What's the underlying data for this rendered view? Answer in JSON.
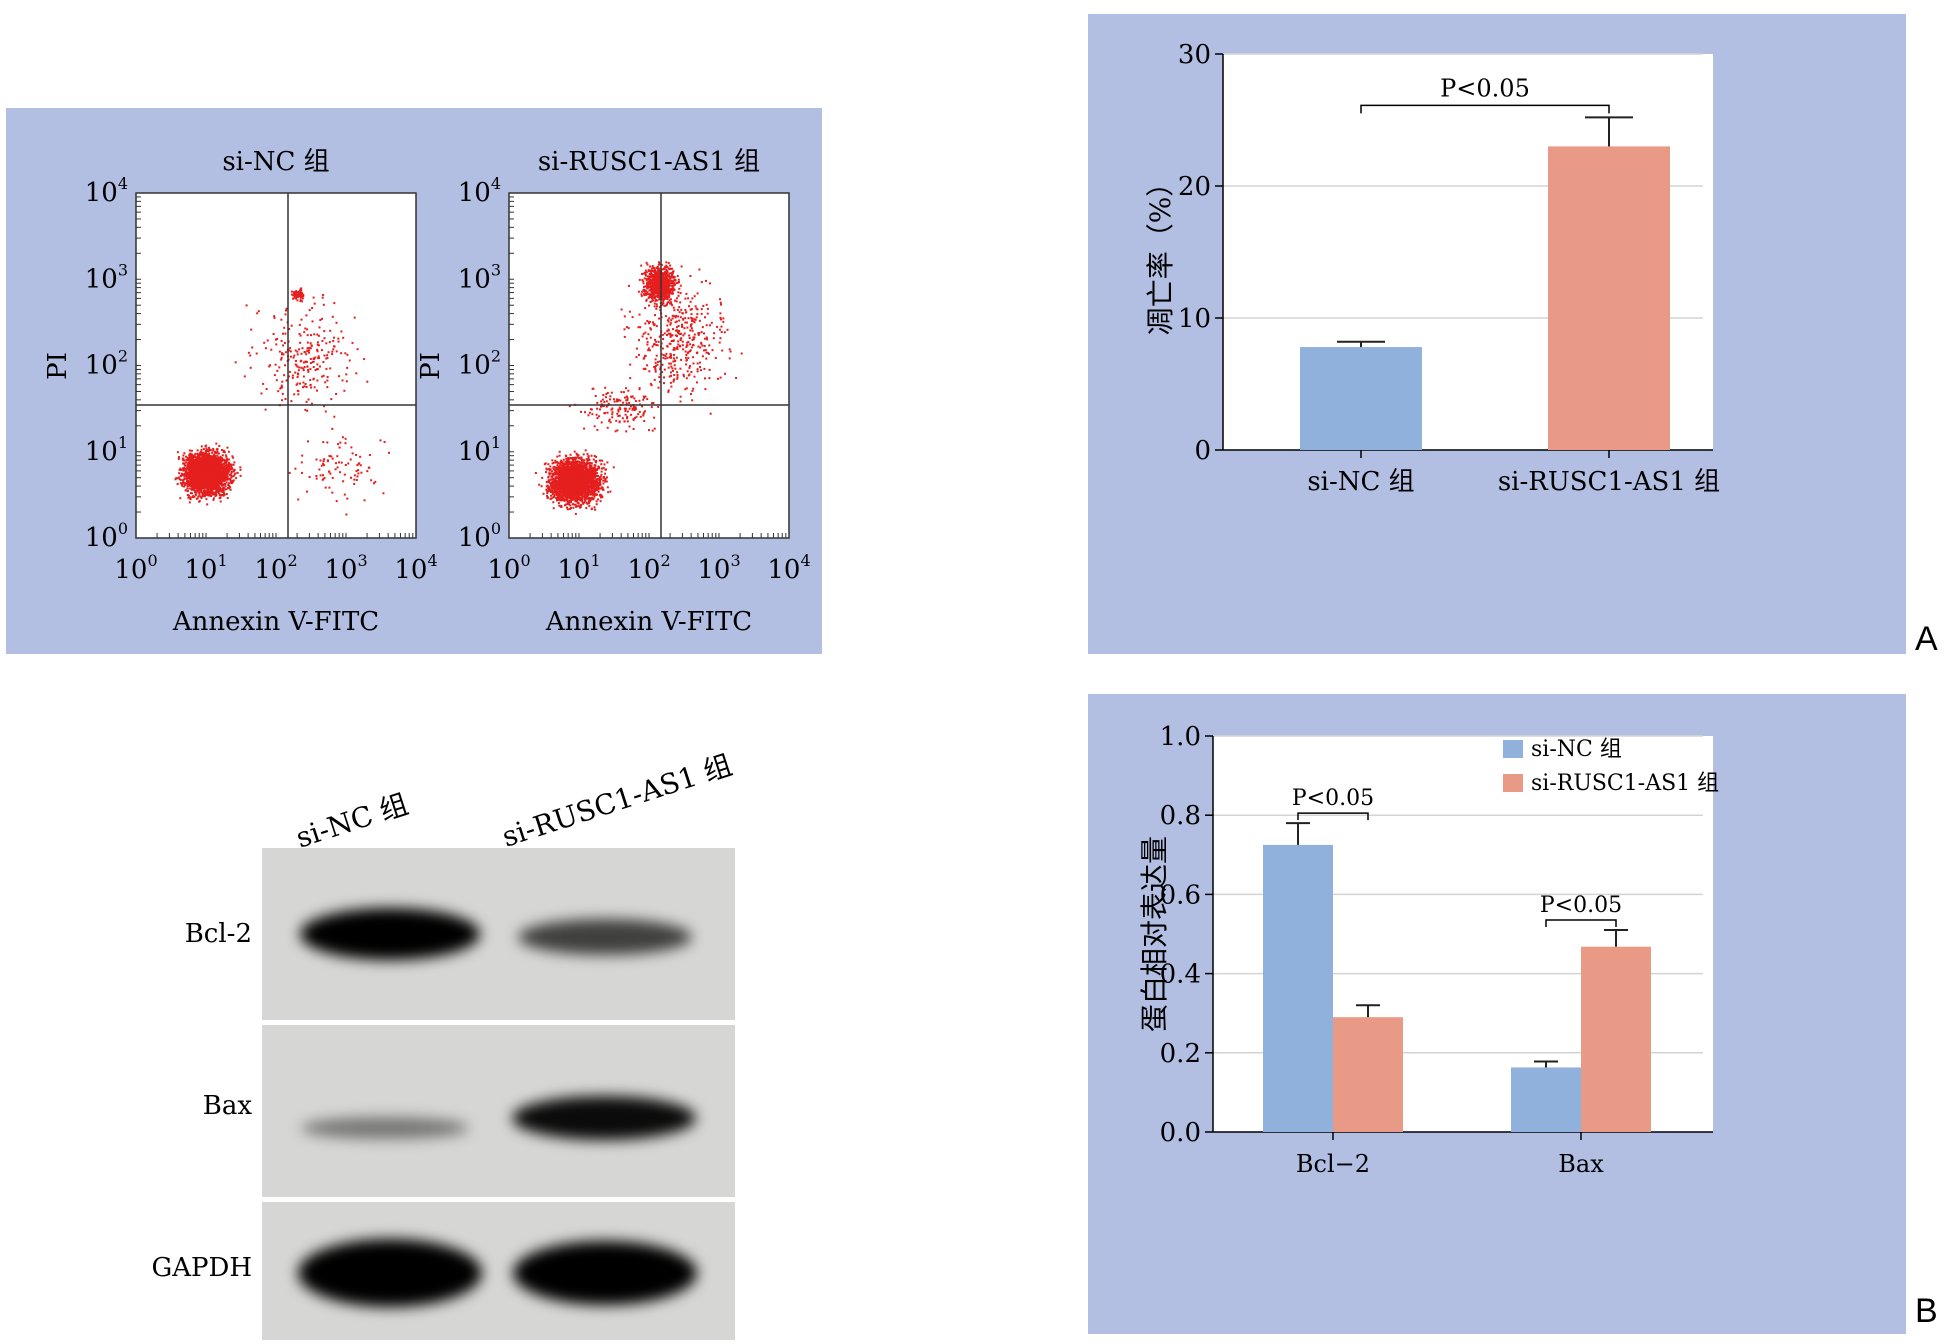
{
  "colors": {
    "panel_bg": "#b2bfe2",
    "series_nc": "#91b1dd",
    "series_rusc": "#e89a86",
    "dot": "#e51e1e",
    "gridline": "#d4d4d4"
  },
  "panel_letters": {
    "a": "A",
    "b": "B"
  },
  "flow": {
    "plots": [
      {
        "title": "si-NC 组",
        "ylabel": "PI",
        "xlabel": "Annexin V-FITC"
      },
      {
        "title": "si-RUSC1-AS1 组",
        "ylabel": "PI",
        "xlabel": "Annexin V-FITC"
      }
    ],
    "tick_base": "10",
    "tick_exps": [
      "0",
      "1",
      "2",
      "3",
      "4"
    ]
  },
  "western": {
    "lane_labels": [
      "si-NC 组",
      "si-RUSC1-AS1 组"
    ],
    "rows": [
      "Bcl-2",
      "Bax",
      "GAPDH"
    ],
    "band_intensity": {
      "Bcl-2": [
        1.0,
        0.7
      ],
      "Bax": [
        0.45,
        0.95
      ],
      "GAPDH": [
        1.0,
        1.0
      ]
    }
  },
  "chart_data": [
    {
      "type": "bar",
      "categories": [
        "si-NC 组",
        "si-RUSC1-AS1 组"
      ],
      "values": [
        7.8,
        23.0
      ],
      "errors": [
        0.4,
        2.2
      ],
      "ylabel": "凋亡率（%）",
      "ylim": [
        0,
        30
      ],
      "yticks": [
        "0",
        "10",
        "20",
        "30"
      ],
      "grid": true,
      "annotations": [
        {
          "text": "P<0.05",
          "between": [
            0,
            1
          ]
        }
      ]
    },
    {
      "type": "bar",
      "categories": [
        "Bcl−2",
        "Bax"
      ],
      "series": [
        {
          "name": "si-NC 组",
          "values": [
            0.725,
            0.163
          ],
          "errors": [
            0.055,
            0.015
          ]
        },
        {
          "name": "si-RUSC1-AS1 组",
          "values": [
            0.29,
            0.468
          ],
          "errors": [
            0.03,
            0.042
          ]
        }
      ],
      "ylabel": "蛋白相对表达量",
      "ylim": [
        0,
        1.0
      ],
      "yticks": [
        "0.0",
        "0.2",
        "0.4",
        "0.6",
        "0.8",
        "1.0"
      ],
      "grid": true,
      "legend": "top-right",
      "annotations": [
        {
          "text": "P<0.05",
          "category": 0
        },
        {
          "text": "P<0.05",
          "category": 1
        }
      ]
    }
  ]
}
